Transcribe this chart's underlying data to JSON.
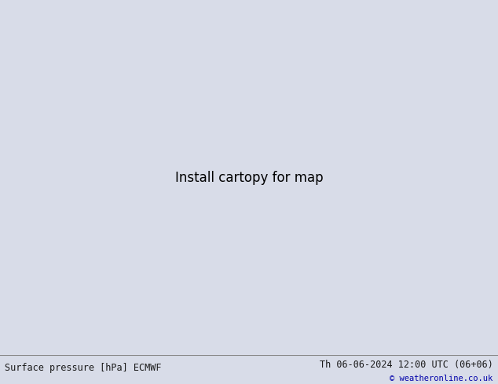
{
  "title_left": "Surface pressure [hPa] ECMWF",
  "title_right": "Th 06-06-2024 12:00 UTC (06+06)",
  "credit": "© weatheronline.co.uk",
  "bg_color": "#d8dce8",
  "land_color": "#c8ddb0",
  "gray_color": "#b0b0b0",
  "text_color_left": "#1a1a1a",
  "text_color_right": "#1a1a1a",
  "credit_color": "#0000aa",
  "font_size_title": 8.5,
  "font_size_credit": 7.5,
  "bottom_bar_color": "#e8e8e8",
  "bottom_bar_height": 0.075,
  "isobar_low_color": "#0000cc",
  "isobar_high_color": "#cc0000",
  "isobar_black_color": "#000000",
  "isobar_lw": 1.2
}
